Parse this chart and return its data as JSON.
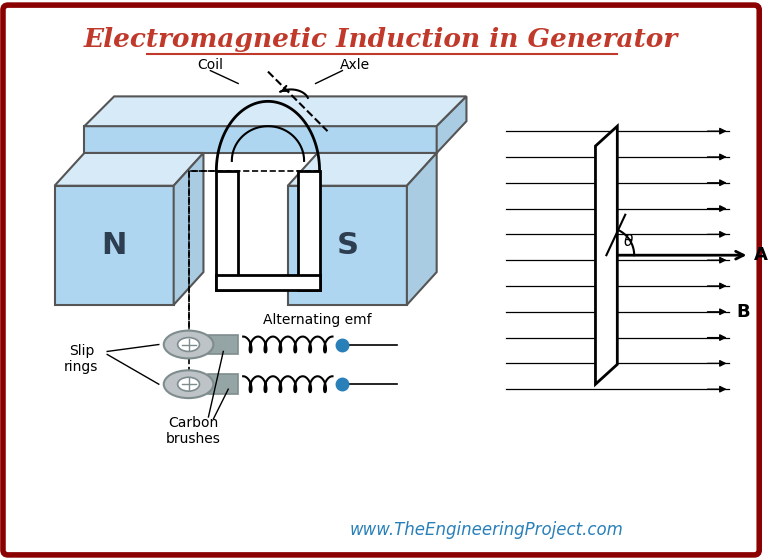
{
  "title": "Electromagnetic Induction in Generator",
  "title_color": "#c0392b",
  "title_fontsize": 19,
  "background_color": "#ffffff",
  "border_color": "#8b0000",
  "border_linewidth": 4,
  "website_text": "www.TheEngineeringProject.com",
  "website_color": "#2980b9",
  "website_fontsize": 12,
  "magnet_color": "#aed6f1",
  "magnet_color2": "#d6eaf8",
  "magnet_color3": "#a9cce3",
  "magnet_edge": "#555555",
  "N_label": "N",
  "S_label": "S",
  "coil_label": "Coil",
  "axle_label": "Axle",
  "slip_rings_label": "Slip\nrings",
  "carbon_brushes_label": "Carbon\nbrushes",
  "alternating_emf_label": "Alternating emf",
  "B_label": "B",
  "A_label": "A",
  "theta_label": "θ",
  "dot_color": "#2980b9",
  "gray1": "#bdc3c7",
  "gray2": "#95a5a6",
  "gray3": "#7f8c8d"
}
